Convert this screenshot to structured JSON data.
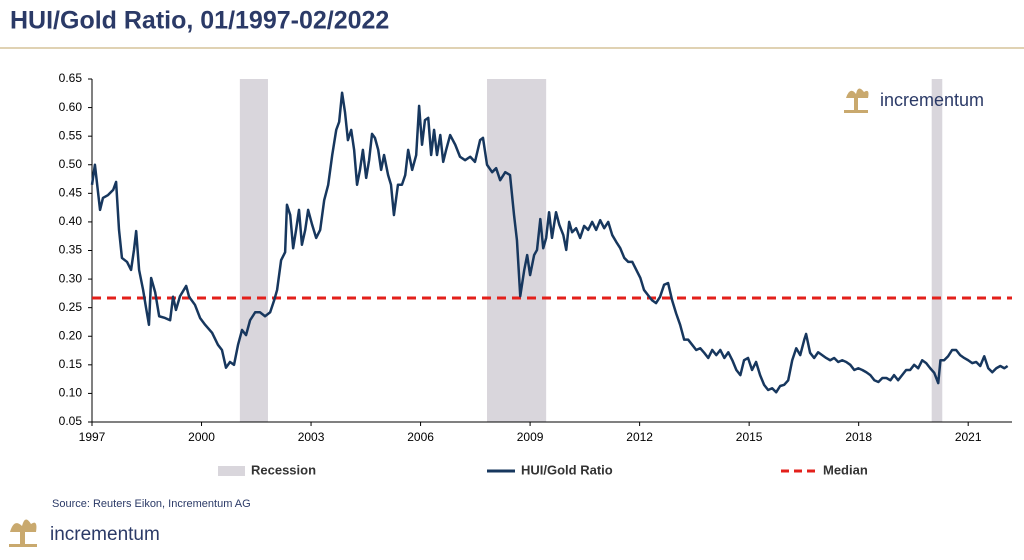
{
  "chart_data": {
    "type": "line",
    "title": "HUI/Gold Ratio, 01/1997-02/2022",
    "source": "Source: Reuters Eikon, Incrementum AG",
    "brand": "incrementum",
    "xlim": [
      1997,
      2022.2
    ],
    "xticks": [
      1997,
      2000,
      2003,
      2006,
      2009,
      2012,
      2015,
      2018,
      2021
    ],
    "ylim": [
      0.05,
      0.65
    ],
    "yticks": [
      0.05,
      {
        "value": 0.1,
        "label": "0.10"
      },
      0.15,
      {
        "value": 0.2,
        "label": "0.20"
      },
      0.25,
      {
        "value": 0.3,
        "label": "0.30"
      },
      0.35,
      {
        "value": 0.4,
        "label": "0.40"
      },
      0.45,
      {
        "value": 0.5,
        "label": "0.50"
      },
      0.55,
      {
        "value": 0.6,
        "label": "0.60"
      },
      0.65
    ],
    "recession": {
      "name": "Recession",
      "color": "#d9d6dc",
      "spans": [
        [
          2001.05,
          2001.82
        ],
        [
          2007.82,
          2009.44
        ],
        [
          2020.0,
          2020.29
        ]
      ]
    },
    "median": {
      "name": "Median",
      "color": "#e3201b",
      "value": 0.267
    },
    "x": [
      1997.0,
      1997.08,
      1997.22,
      1997.3,
      1997.44,
      1997.58,
      1997.66,
      1997.74,
      1997.82,
      1997.96,
      1998.07,
      1998.15,
      1998.21,
      1998.29,
      1998.4,
      1998.48,
      1998.56,
      1998.62,
      1998.73,
      1998.84,
      1999.0,
      1999.14,
      1999.22,
      1999.3,
      1999.41,
      1999.58,
      1999.66,
      1999.82,
      1999.96,
      2000.1,
      2000.29,
      2000.45,
      2000.56,
      2000.67,
      2000.78,
      2000.89,
      2001.0,
      2001.11,
      2001.22,
      2001.33,
      2001.47,
      2001.6,
      2001.74,
      2001.88,
      2001.99,
      2002.07,
      2002.18,
      2002.29,
      2002.34,
      2002.43,
      2002.51,
      2002.59,
      2002.67,
      2002.75,
      2002.84,
      2002.92,
      2003.03,
      2003.14,
      2003.25,
      2003.36,
      2003.47,
      2003.58,
      2003.69,
      2003.77,
      2003.85,
      2003.93,
      2004.01,
      2004.1,
      2004.18,
      2004.26,
      2004.34,
      2004.42,
      2004.51,
      2004.59,
      2004.67,
      2004.75,
      2004.84,
      2004.92,
      2005.0,
      2005.11,
      2005.19,
      2005.27,
      2005.38,
      2005.49,
      2005.58,
      2005.66,
      2005.77,
      2005.88,
      2005.96,
      2006.04,
      2006.12,
      2006.21,
      2006.29,
      2006.37,
      2006.45,
      2006.54,
      2006.62,
      2006.7,
      2006.81,
      2006.95,
      2007.08,
      2007.22,
      2007.36,
      2007.49,
      2007.63,
      2007.71,
      2007.82,
      2007.96,
      2008.07,
      2008.18,
      2008.32,
      2008.45,
      2008.56,
      2008.64,
      2008.73,
      2008.84,
      2008.92,
      2009.0,
      2009.11,
      2009.19,
      2009.28,
      2009.36,
      2009.44,
      2009.52,
      2009.6,
      2009.71,
      2009.8,
      2009.91,
      2009.99,
      2010.07,
      2010.15,
      2010.26,
      2010.37,
      2010.48,
      2010.59,
      2010.7,
      2010.81,
      2010.92,
      2011.03,
      2011.14,
      2011.25,
      2011.36,
      2011.47,
      2011.58,
      2011.69,
      2011.8,
      2011.91,
      2012.02,
      2012.12,
      2012.23,
      2012.34,
      2012.45,
      2012.56,
      2012.67,
      2012.78,
      2012.89,
      2013.0,
      2013.11,
      2013.22,
      2013.33,
      2013.44,
      2013.55,
      2013.66,
      2013.77,
      2013.88,
      2013.99,
      2014.1,
      2014.21,
      2014.32,
      2014.43,
      2014.54,
      2014.65,
      2014.76,
      2014.86,
      2014.97,
      2015.08,
      2015.19,
      2015.3,
      2015.41,
      2015.52,
      2015.63,
      2015.74,
      2015.85,
      2015.96,
      2016.07,
      2016.18,
      2016.29,
      2016.4,
      2016.51,
      2016.56,
      2016.67,
      2016.78,
      2016.89,
      2017.0,
      2017.11,
      2017.22,
      2017.33,
      2017.44,
      2017.55,
      2017.66,
      2017.77,
      2017.88,
      2017.99,
      2018.1,
      2018.21,
      2018.32,
      2018.43,
      2018.54,
      2018.65,
      2018.76,
      2018.87,
      2018.97,
      2019.08,
      2019.19,
      2019.3,
      2019.41,
      2019.52,
      2019.63,
      2019.74,
      2019.85,
      2019.96,
      2020.07,
      2020.18,
      2020.24,
      2020.34,
      2020.45,
      2020.56,
      2020.67,
      2020.78,
      2020.89,
      2021.0,
      2021.11,
      2021.22,
      2021.33,
      2021.44,
      2021.55,
      2021.66,
      2021.77,
      2021.88,
      2021.99,
      2022.08
    ],
    "series": [
      {
        "name": "HUI/Gold Ratio",
        "color": "#17375e",
        "values": [
          0.465,
          0.5,
          0.421,
          0.442,
          0.447,
          0.456,
          0.47,
          0.386,
          0.337,
          0.33,
          0.316,
          0.351,
          0.384,
          0.316,
          0.281,
          0.25,
          0.22,
          0.302,
          0.277,
          0.235,
          0.232,
          0.228,
          0.269,
          0.246,
          0.27,
          0.288,
          0.269,
          0.255,
          0.232,
          0.22,
          0.206,
          0.185,
          0.176,
          0.145,
          0.155,
          0.15,
          0.185,
          0.211,
          0.202,
          0.228,
          0.242,
          0.242,
          0.235,
          0.242,
          0.263,
          0.281,
          0.333,
          0.347,
          0.43,
          0.412,
          0.354,
          0.386,
          0.421,
          0.36,
          0.386,
          0.421,
          0.395,
          0.372,
          0.386,
          0.438,
          0.465,
          0.517,
          0.561,
          0.575,
          0.626,
          0.592,
          0.543,
          0.561,
          0.526,
          0.465,
          0.491,
          0.526,
          0.477,
          0.508,
          0.554,
          0.547,
          0.526,
          0.491,
          0.517,
          0.482,
          0.465,
          0.412,
          0.465,
          0.465,
          0.482,
          0.526,
          0.491,
          0.517,
          0.603,
          0.535,
          0.578,
          0.582,
          0.517,
          0.561,
          0.517,
          0.552,
          0.505,
          0.526,
          0.552,
          0.535,
          0.514,
          0.508,
          0.514,
          0.505,
          0.543,
          0.547,
          0.5,
          0.487,
          0.494,
          0.473,
          0.487,
          0.482,
          0.412,
          0.368,
          0.27,
          0.316,
          0.342,
          0.307,
          0.342,
          0.351,
          0.405,
          0.354,
          0.372,
          0.417,
          0.372,
          0.417,
          0.395,
          0.377,
          0.351,
          0.4,
          0.382,
          0.389,
          0.372,
          0.393,
          0.386,
          0.4,
          0.386,
          0.403,
          0.389,
          0.4,
          0.377,
          0.365,
          0.354,
          0.337,
          0.33,
          0.33,
          0.316,
          0.302,
          0.281,
          0.272,
          0.263,
          0.258,
          0.269,
          0.29,
          0.293,
          0.263,
          0.24,
          0.22,
          0.194,
          0.194,
          0.185,
          0.176,
          0.179,
          0.171,
          0.162,
          0.176,
          0.167,
          0.176,
          0.162,
          0.172,
          0.158,
          0.141,
          0.132,
          0.158,
          0.162,
          0.141,
          0.155,
          0.132,
          0.115,
          0.106,
          0.109,
          0.102,
          0.113,
          0.115,
          0.123,
          0.158,
          0.179,
          0.167,
          0.194,
          0.204,
          0.171,
          0.162,
          0.172,
          0.167,
          0.162,
          0.158,
          0.162,
          0.155,
          0.158,
          0.155,
          0.15,
          0.141,
          0.144,
          0.141,
          0.137,
          0.132,
          0.123,
          0.12,
          0.127,
          0.127,
          0.123,
          0.132,
          0.123,
          0.132,
          0.141,
          0.141,
          0.15,
          0.144,
          0.158,
          0.153,
          0.144,
          0.136,
          0.118,
          0.158,
          0.158,
          0.165,
          0.176,
          0.176,
          0.167,
          0.162,
          0.158,
          0.153,
          0.155,
          0.148,
          0.165,
          0.144,
          0.137,
          0.144,
          0.148,
          0.144,
          0.148
        ]
      }
    ]
  }
}
